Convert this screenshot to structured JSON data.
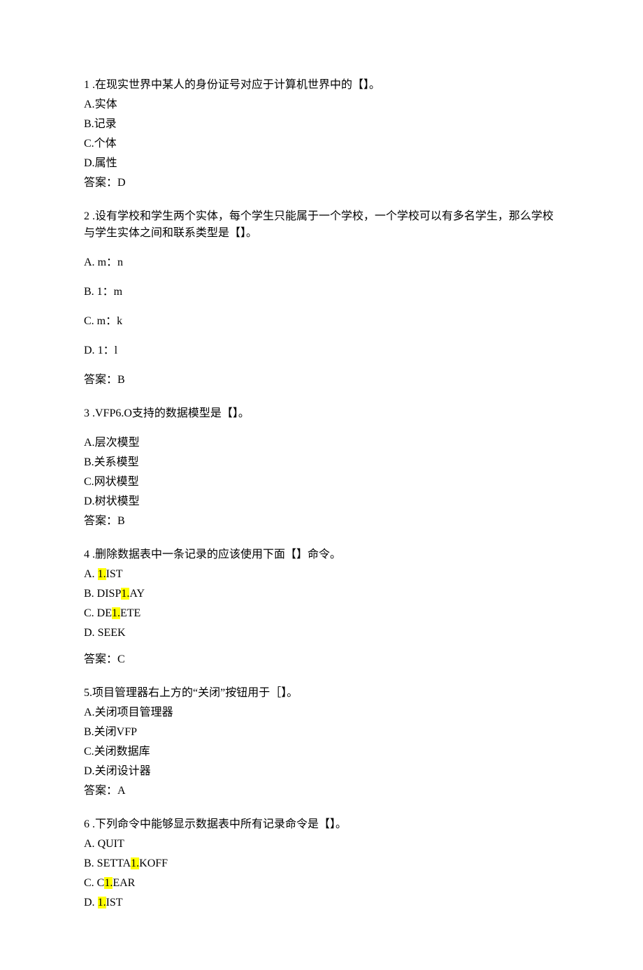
{
  "highlight_color": "#ffff00",
  "text_color": "#000000",
  "background_color": "#ffffff",
  "font_family": "SimSun",
  "font_size_pt": 12,
  "questions": [
    {
      "num": "1",
      "stem": " .在现实世界中某人的身份证号对应于计算机世界中的【】。",
      "options": [
        {
          "letter": "A.",
          "text": "实体",
          "spaced": false
        },
        {
          "letter": "B.",
          "text": "记录",
          "spaced": false
        },
        {
          "letter": "C.",
          "text": "个体",
          "spaced": false
        },
        {
          "letter": "D.",
          "text": "属性",
          "spaced": false
        }
      ],
      "answer": "答案：D",
      "answer_spaced_top": false
    },
    {
      "num": "2",
      "stem": "  .设有学校和学生两个实体，每个学生只能属于一个学校，一个学校可以有多名学生，那么学校与学生实体之间和联系类型是【】。",
      "options": [
        {
          "letter": "A.",
          "text": "   m：n",
          "spaced": true
        },
        {
          "letter": "B.",
          "text": "   1：m",
          "spaced": true
        },
        {
          "letter": "C.",
          "text": "   m：k",
          "spaced": true
        },
        {
          "letter": "D.",
          "text": "   1：l",
          "spaced": true
        }
      ],
      "answer": "答案：B",
      "answer_spaced_top": false,
      "stem_spaced_after": true
    },
    {
      "num": "3",
      "stem": "  .VFP6.O支持的数据模型是【】。",
      "options": [
        {
          "letter": "A.",
          "text": "层次模型",
          "spaced": false
        },
        {
          "letter": "B.",
          "text": "关系模型",
          "spaced": false
        },
        {
          "letter": "C.",
          "text": "网状模型",
          "spaced": false
        },
        {
          "letter": "D.",
          "text": "树状模型",
          "spaced": false
        }
      ],
      "answer": "答案：B",
      "answer_spaced_top": false,
      "stem_spaced_after": true
    },
    {
      "num": "4",
      "stem": "  .删除数据表中一条记录的应该使用下面【】命令。",
      "options": [
        {
          "letter": "A.",
          "text_parts": [
            {
              "t": "    ",
              "h": false
            },
            {
              "t": "1.",
              "h": true
            },
            {
              "t": "IST",
              "h": false
            }
          ],
          "spaced": false
        },
        {
          "letter": "B.",
          "text_parts": [
            {
              "t": "    DISP",
              "h": false
            },
            {
              "t": "1.",
              "h": true
            },
            {
              "t": "AY",
              "h": false
            }
          ],
          "spaced": false
        },
        {
          "letter": "C.",
          "text_parts": [
            {
              "t": "    DE",
              "h": false
            },
            {
              "t": "1.",
              "h": true
            },
            {
              "t": "ETE",
              "h": false
            }
          ],
          "spaced": false
        },
        {
          "letter": "D.",
          "text_parts": [
            {
              "t": "    SEEK",
              "h": false
            }
          ],
          "spaced": false
        }
      ],
      "answer": "答案：C",
      "answer_spaced_top": true
    },
    {
      "num": "5.",
      "stem": "项目管理器右上方的“关闭”按钮用于［】。",
      "options": [
        {
          "letter": "A.",
          "text": "关闭项目管理器",
          "spaced": false
        },
        {
          "letter": "B.",
          "text": "关闭VFP",
          "spaced": false
        },
        {
          "letter": "C.",
          "text": "关闭数据库",
          "spaced": false
        },
        {
          "letter": "D.",
          "text": "关闭设计器",
          "spaced": false
        }
      ],
      "answer": "答案：A",
      "answer_spaced_top": false
    },
    {
      "num": "6",
      "stem": "  .下列命令中能够显示数据表中所有记录命令是【】。",
      "options": [
        {
          "letter": "A.",
          "text_parts": [
            {
              "t": "    QUIT",
              "h": false
            }
          ],
          "spaced": false
        },
        {
          "letter": "B.",
          "text_parts": [
            {
              "t": "    SETTA",
              "h": false
            },
            {
              "t": "1.",
              "h": true
            },
            {
              "t": "KOFF",
              "h": false
            }
          ],
          "spaced": false
        },
        {
          "letter": "C.",
          "text_parts": [
            {
              "t": "    C",
              "h": false
            },
            {
              "t": "1.",
              "h": true
            },
            {
              "t": "EAR",
              "h": false
            }
          ],
          "spaced": false
        },
        {
          "letter": "D.",
          "text_parts": [
            {
              "t": "    ",
              "h": false
            },
            {
              "t": "1.",
              "h": true
            },
            {
              "t": "IST",
              "h": false
            }
          ],
          "spaced": false
        }
      ],
      "answer": "",
      "answer_spaced_top": false
    }
  ]
}
